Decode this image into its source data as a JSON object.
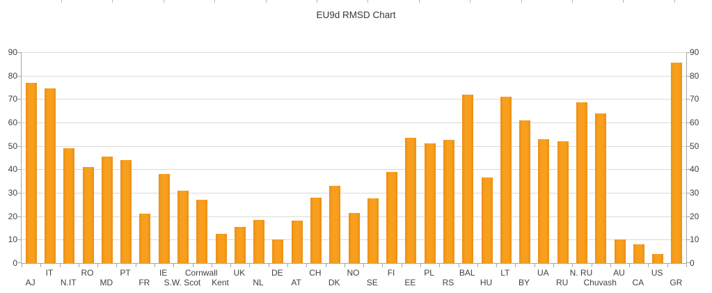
{
  "title": "EU9d RMSD Chart",
  "colors": {
    "bar_main": "#F99F1E",
    "bar_edge": "#EC8F12",
    "gridline": "#D9D9D9",
    "axis": "#A6A6A6",
    "text": "#3F3F3F",
    "title_text": "#373737",
    "background": "#FFFFFF"
  },
  "chart_data": {
    "type": "bar",
    "title": "EU9d RMSD Chart",
    "categories": [
      "AJ",
      "IT",
      "N.IT",
      "RO",
      "MD",
      "PT",
      "FR",
      "IE",
      "S.W. Scot",
      "Cornwall",
      "Kent",
      "UK",
      "NL",
      "DE",
      "AT",
      "CH",
      "DK",
      "NO",
      "SE",
      "FI",
      "EE",
      "PL",
      "RS",
      "BAL",
      "HU",
      "LT",
      "BY",
      "UA",
      "RU",
      "N. RU",
      "Chuvash",
      "AU",
      "CA",
      "US",
      "GR"
    ],
    "values": [
      77,
      74.5,
      49,
      41,
      45.5,
      44,
      21,
      38,
      31,
      27,
      12.5,
      15.5,
      18.5,
      10,
      18,
      28,
      33,
      21.5,
      27.5,
      39,
      53.5,
      51,
      52.5,
      72,
      36.5,
      71,
      61,
      53,
      52,
      68.5,
      64,
      10,
      8,
      4,
      85.5
    ],
    "xlabel": "",
    "ylabel": "",
    "ylim": [
      0,
      90
    ],
    "yticks": [
      0,
      10,
      20,
      30,
      40,
      50,
      60,
      70,
      80,
      90
    ],
    "y_axis_sides": [
      "left",
      "right"
    ],
    "grid": true,
    "legend": "none",
    "x_label_layout": "two-row alternating",
    "bar_color": "#F99F1E"
  }
}
